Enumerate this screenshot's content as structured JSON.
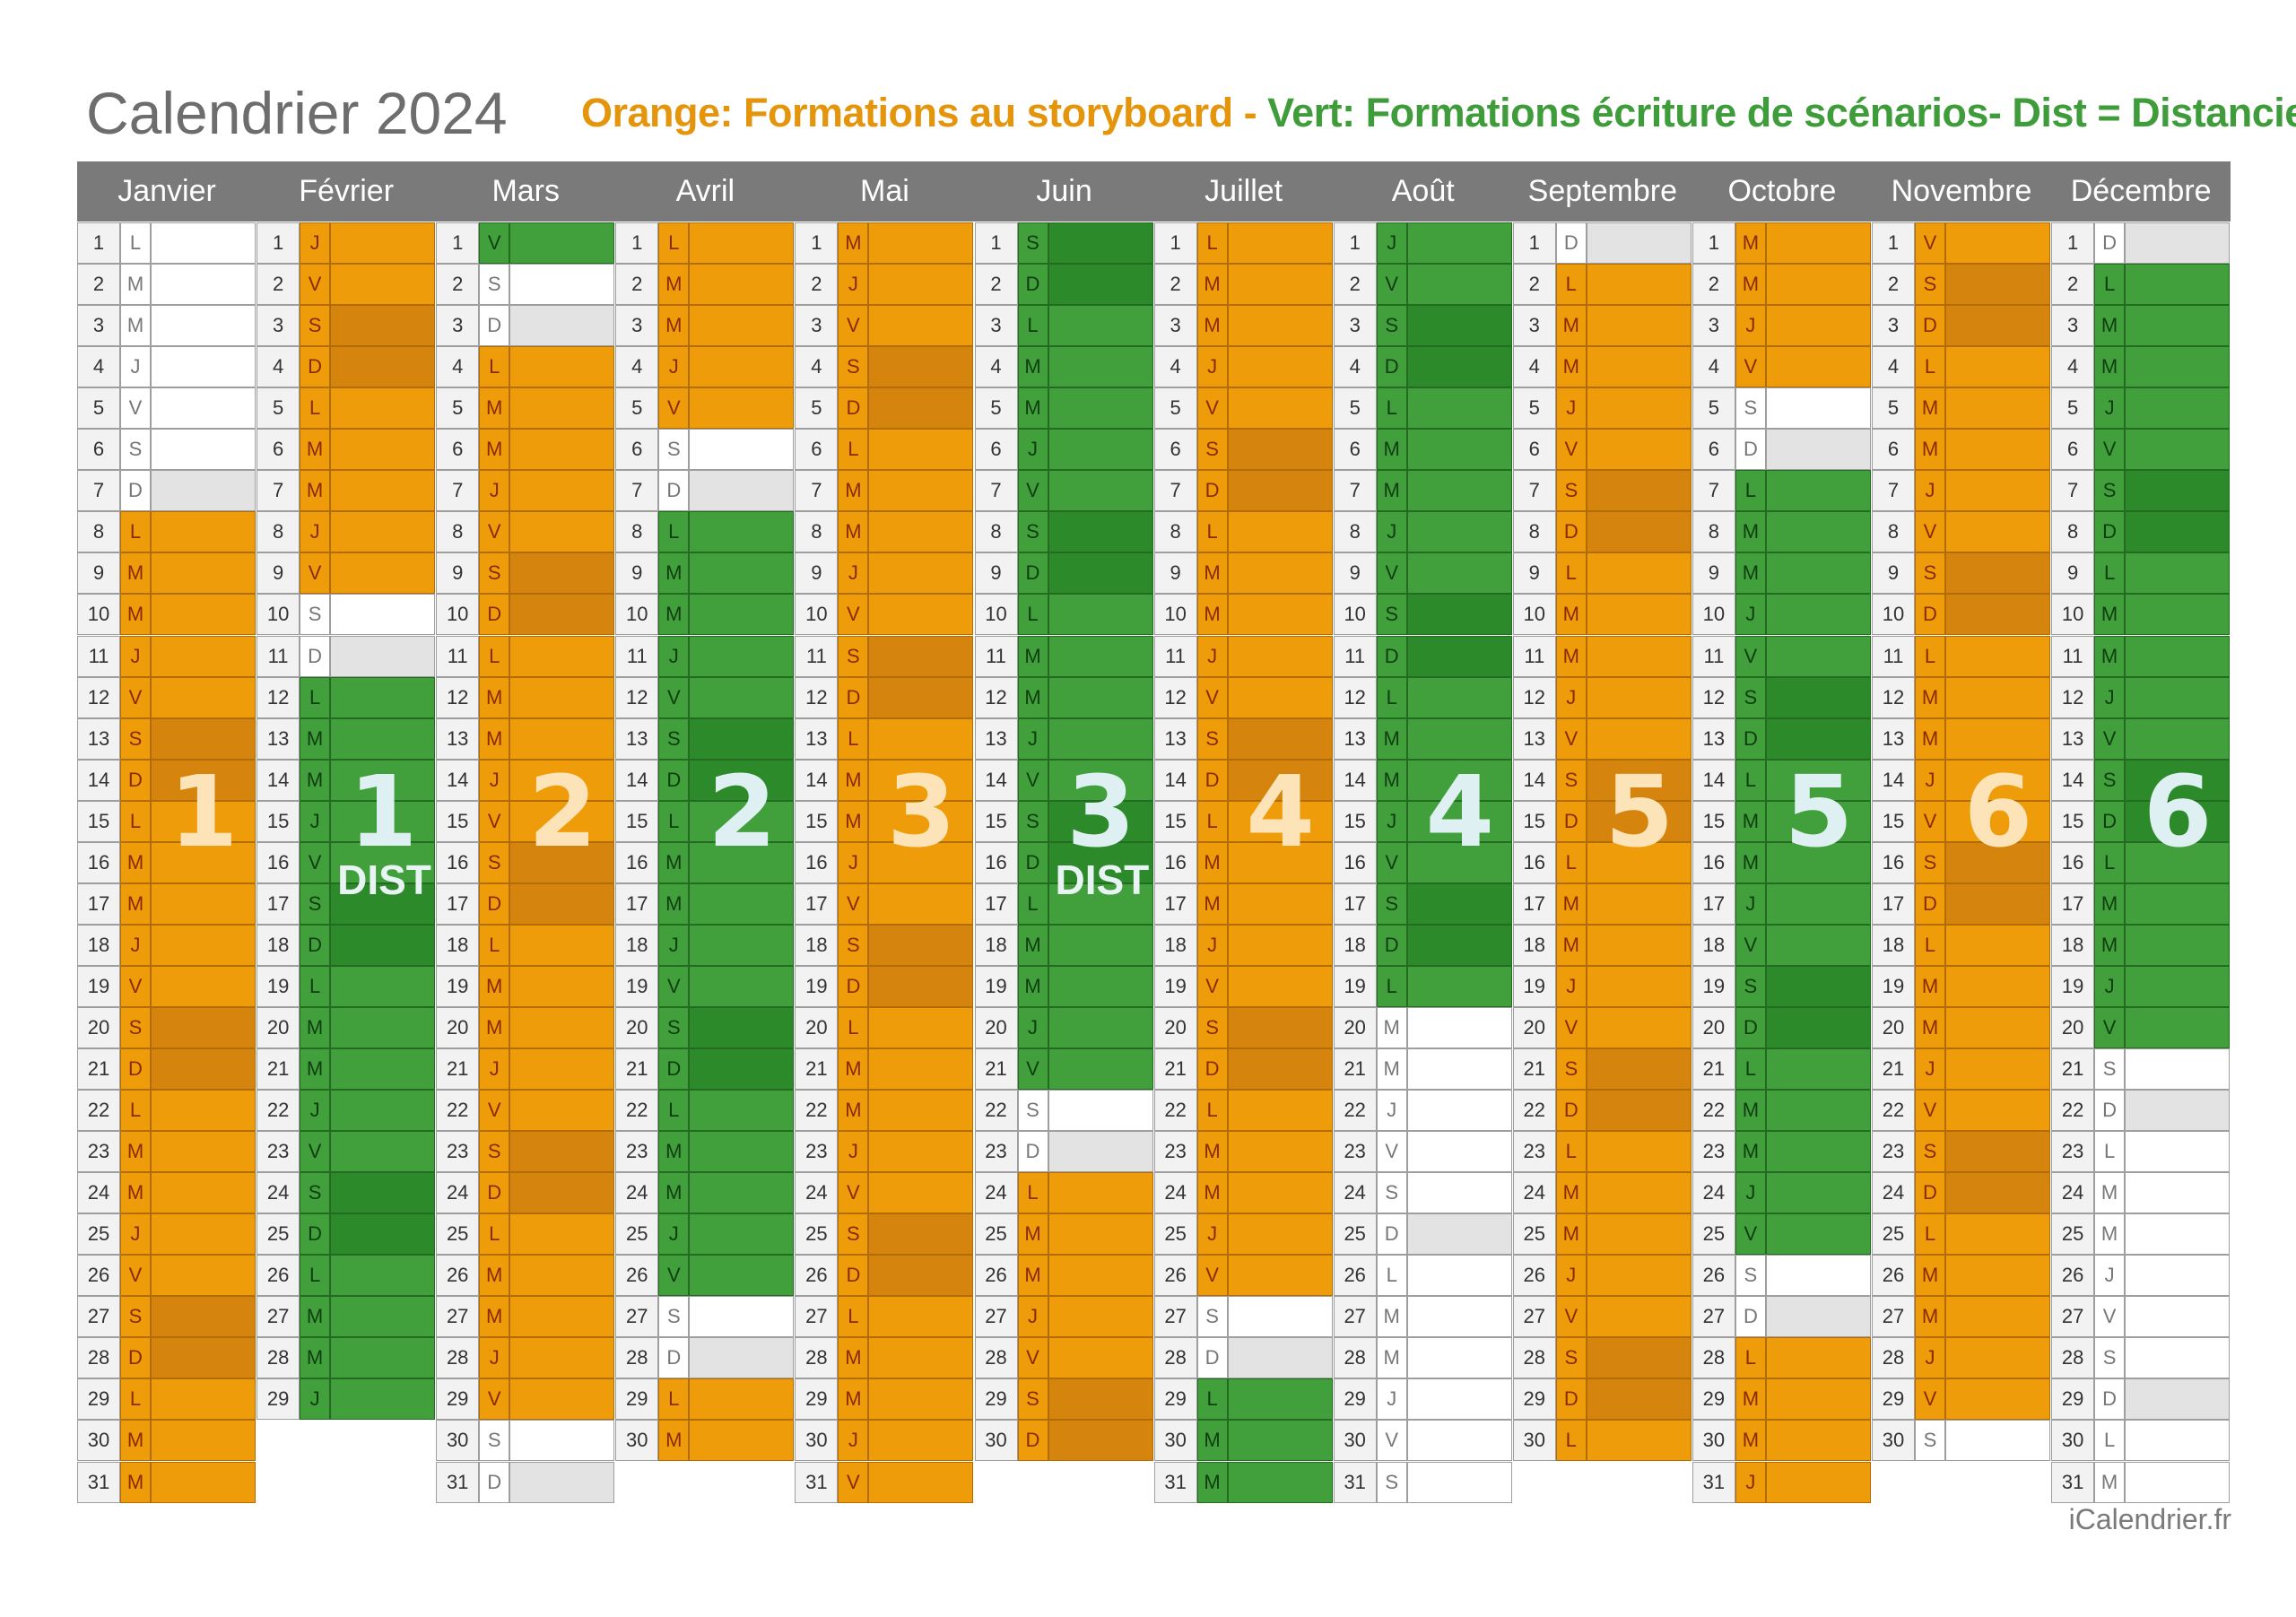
{
  "title": "Calendrier 2024",
  "legend": {
    "orange_text": "Orange: Formations au storyboard - ",
    "green_text": "Vert: Formations écriture de scénarios- Dist = Distanciel"
  },
  "credit": "iCalendrier.fr",
  "colors": {
    "orange": "#ef9c0a",
    "orange_weekend": "#d5850e",
    "green": "#41a03c",
    "green_weekend": "#2d8a2a",
    "plain": "#ffffff",
    "plain_sunday": "#e3e3e3"
  },
  "months": [
    {
      "name": "Janvier",
      "days": "LMMJVSDLMMJVSDLMMJVSDLMMJVSDLMM",
      "segments": [
        {
          "from": 8,
          "to": 31,
          "color": "orange"
        }
      ]
    },
    {
      "name": "Février",
      "days": "JVSDLMMJVSDLMMJVSDLMMJVSDLMMJ",
      "segments": [
        {
          "from": 1,
          "to": 9,
          "color": "orange"
        },
        {
          "from": 12,
          "to": 29,
          "color": "green"
        }
      ]
    },
    {
      "name": "Mars",
      "days": "VSDLMMJVSDLMMJVSDLMMJVSDLMMJVSD",
      "segments": [
        {
          "from": 1,
          "to": 1,
          "color": "green"
        },
        {
          "from": 4,
          "to": 29,
          "color": "orange"
        }
      ]
    },
    {
      "name": "Avril",
      "days": "LMMJVSDLMMJVSDLMMJVSDLMMJVSDLM",
      "segments": [
        {
          "from": 1,
          "to": 5,
          "color": "orange"
        },
        {
          "from": 8,
          "to": 26,
          "color": "green"
        },
        {
          "from": 29,
          "to": 30,
          "color": "orange"
        }
      ]
    },
    {
      "name": "Mai",
      "days": "MJVSDLMMJVSDLMMJVSDLMMJVSDLMMJV",
      "segments": [
        {
          "from": 1,
          "to": 31,
          "color": "orange"
        }
      ]
    },
    {
      "name": "Juin",
      "days": "SDLMMJVSDLMMJVSDLMMJVSDLMMJVSD",
      "segments": [
        {
          "from": 1,
          "to": 21,
          "color": "green"
        },
        {
          "from": 24,
          "to": 30,
          "color": "orange"
        }
      ]
    },
    {
      "name": "Juillet",
      "days": "LMMJVSDLMMJVSDLMMJVSDLMMJVSDLMM",
      "segments": [
        {
          "from": 1,
          "to": 26,
          "color": "orange"
        },
        {
          "from": 29,
          "to": 31,
          "color": "green"
        }
      ]
    },
    {
      "name": "Août",
      "days": "JVSDLMMJVSDLMMJVSDLMMJVSDLMMJVS",
      "segments": [
        {
          "from": 1,
          "to": 19,
          "color": "green"
        }
      ]
    },
    {
      "name": "Septembre",
      "days": "DLMMJVSDLMMJVSDLMMJVSDLMMJVSDL",
      "segments": [
        {
          "from": 2,
          "to": 30,
          "color": "orange"
        }
      ]
    },
    {
      "name": "Octobre",
      "days": "MMJVSDLMMJVSDLMMJVSDLMMJVSDLMMJ",
      "segments": [
        {
          "from": 1,
          "to": 4,
          "color": "orange"
        },
        {
          "from": 7,
          "to": 25,
          "color": "green"
        },
        {
          "from": 28,
          "to": 31,
          "color": "orange"
        }
      ]
    },
    {
      "name": "Novembre",
      "days": "VSDLMMJVSDLMMJVSDLMMJVSDLMMJVS",
      "segments": [
        {
          "from": 1,
          "to": 29,
          "color": "orange"
        }
      ]
    },
    {
      "name": "Décembre",
      "days": "DLMMJVSDLMMJVSDLMMJVSDLMMJVSDLM",
      "segments": [
        {
          "from": 2,
          "to": 20,
          "color": "green"
        }
      ]
    }
  ],
  "sessions": [
    {
      "label": "1",
      "month": 0,
      "color": "orange"
    },
    {
      "label": "1",
      "month": 1,
      "color": "green",
      "sub": "DIST"
    },
    {
      "label": "2",
      "month": 2,
      "color": "orange"
    },
    {
      "label": "2",
      "month": 3,
      "color": "green"
    },
    {
      "label": "3",
      "month": 4,
      "color": "orange"
    },
    {
      "label": "3",
      "month": 5,
      "color": "green",
      "sub": "DIST"
    },
    {
      "label": "4",
      "month": 6,
      "color": "orange"
    },
    {
      "label": "4",
      "month": 7,
      "color": "green"
    },
    {
      "label": "5",
      "month": 8,
      "color": "orange"
    },
    {
      "label": "5",
      "month": 9,
      "color": "green"
    },
    {
      "label": "6",
      "month": 10,
      "color": "orange"
    },
    {
      "label": "6",
      "month": 11,
      "color": "green"
    }
  ]
}
